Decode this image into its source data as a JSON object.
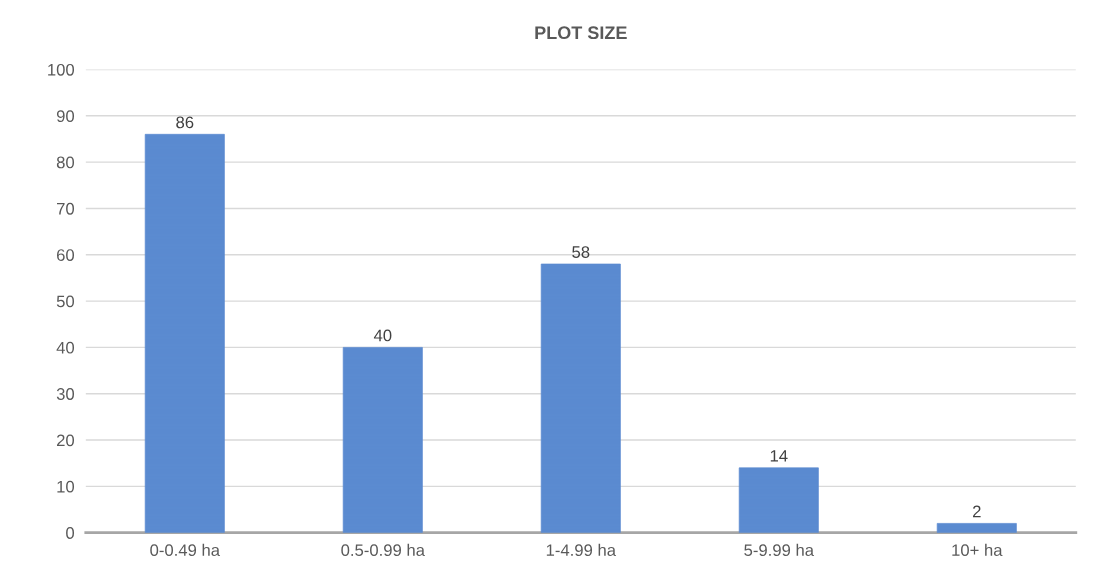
{
  "chart_data": {
    "type": "bar",
    "title": "PLOT SIZE",
    "categories": [
      "0-0.49 ha",
      "0.5-0.99 ha",
      "1-4.99 ha",
      "5-9.99 ha",
      "10+ ha"
    ],
    "values": [
      86,
      40,
      58,
      14,
      2
    ],
    "color": "#5a8ad0",
    "ylim": [
      0,
      100
    ],
    "yticks": [
      0,
      10,
      20,
      30,
      40,
      50,
      60,
      70,
      80,
      90,
      100
    ],
    "grid": "y",
    "data_labels": true,
    "legend": false
  }
}
